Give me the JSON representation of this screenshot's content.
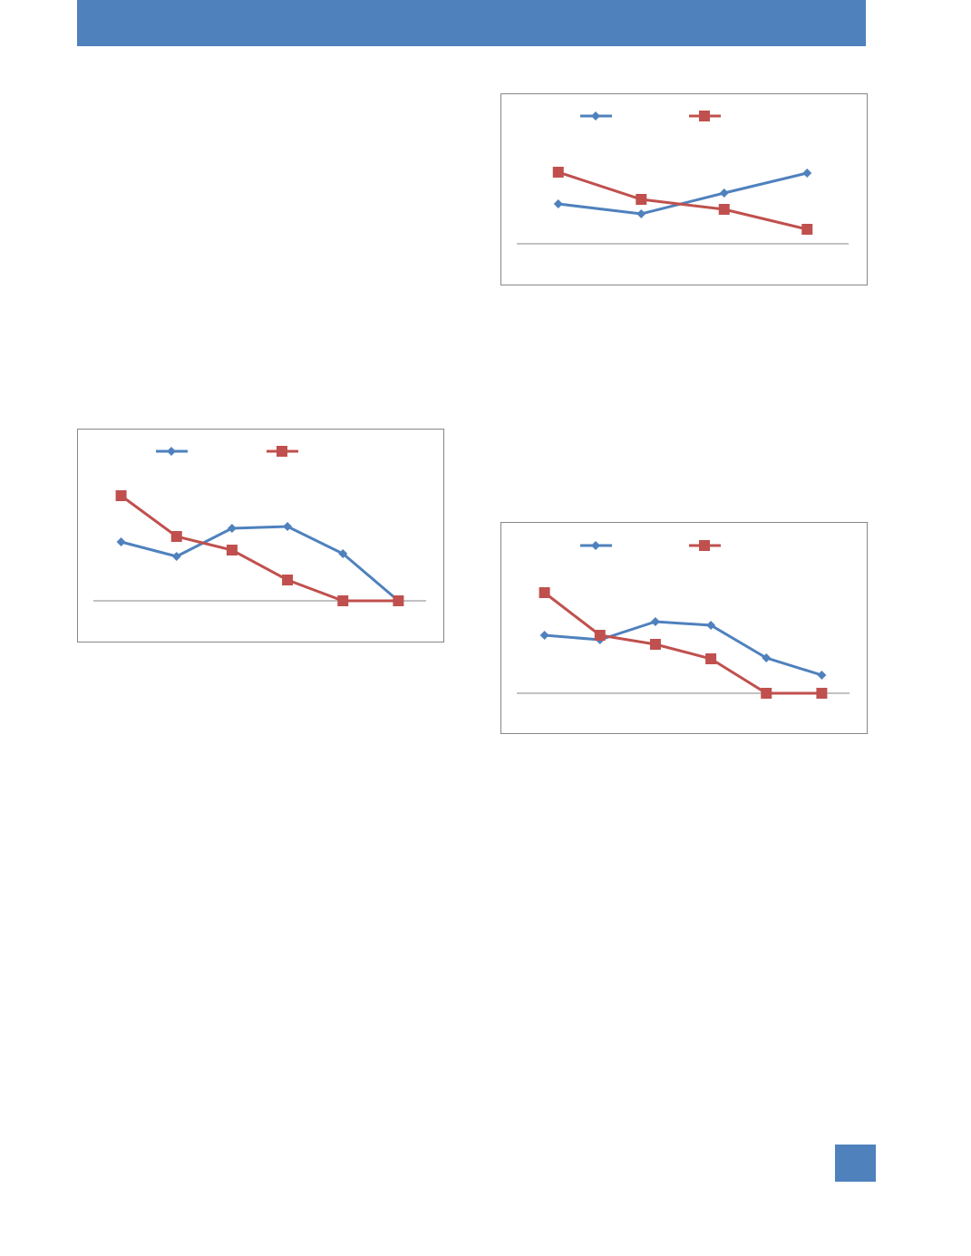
{
  "chart_data": [
    {
      "type": "line",
      "categories": [
        null,
        null,
        null,
        null
      ],
      "series": [
        {
          "color": "#4f81bd",
          "marker": "diamond",
          "values": [
            44,
            33,
            56,
            78
          ]
        },
        {
          "color": "#c0504d",
          "marker": "square",
          "values": [
            79,
            49,
            38,
            16
          ]
        }
      ],
      "ylim": [
        0,
        100
      ],
      "legend": "top"
    },
    {
      "type": "line",
      "categories": [
        null,
        null,
        null,
        null,
        null,
        null
      ],
      "series": [
        {
          "color": "#4f81bd",
          "marker": "diamond",
          "values": [
            65,
            49,
            80,
            82,
            52,
            0
          ]
        },
        {
          "color": "#c0504d",
          "marker": "square",
          "values": [
            116,
            71,
            56,
            23,
            0,
            0
          ]
        }
      ],
      "ylim": [
        0,
        130
      ],
      "legend": "top"
    },
    {
      "type": "line",
      "categories": [
        null,
        null,
        null,
        null,
        null,
        null
      ],
      "series": [
        {
          "color": "#4f81bd",
          "marker": "diamond",
          "values": [
            64,
            59,
            79,
            75,
            39,
            20
          ]
        },
        {
          "color": "#c0504d",
          "marker": "square",
          "values": [
            111,
            64,
            54,
            38,
            0,
            0
          ]
        }
      ],
      "ylim": [
        0,
        130
      ],
      "legend": "top"
    }
  ]
}
